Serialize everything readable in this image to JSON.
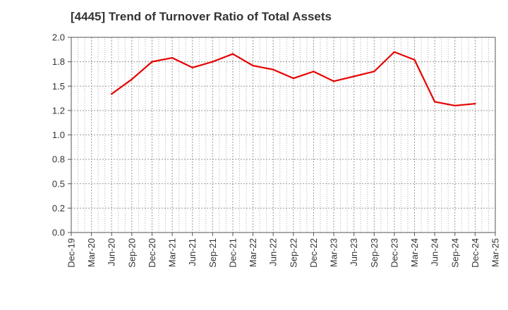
{
  "chart_data": {
    "type": "line",
    "title": "[4445]  Trend of Turnover Ratio of Total Assets",
    "xlabel": "",
    "ylabel": "",
    "x_tick_labels": [
      "Dec-19",
      "Mar-20",
      "Jun-20",
      "Sep-20",
      "Dec-20",
      "Mar-21",
      "Jun-21",
      "Sep-21",
      "Dec-21",
      "Mar-22",
      "Jun-22",
      "Sep-22",
      "Dec-22",
      "Mar-23",
      "Jun-23",
      "Sep-23",
      "Dec-23",
      "Mar-24",
      "Jun-24",
      "Sep-24",
      "Dec-24",
      "Mar-25"
    ],
    "y_tick_labels": [
      "0.0",
      "0.2",
      "0.5",
      "0.8",
      "1.0",
      "1.2",
      "1.5",
      "1.8",
      "2.0"
    ],
    "ylim": [
      0,
      2.0
    ],
    "grid": true,
    "series": [
      {
        "color": "#e60000",
        "points": [
          {
            "x": "Jun-20",
            "y": 1.42
          },
          {
            "x": "Sep-20",
            "y": 1.57
          },
          {
            "x": "Dec-20",
            "y": 1.75
          },
          {
            "x": "Mar-21",
            "y": 1.79
          },
          {
            "x": "Jun-21",
            "y": 1.69
          },
          {
            "x": "Sep-21",
            "y": 1.75
          },
          {
            "x": "Dec-21",
            "y": 1.83
          },
          {
            "x": "Mar-22",
            "y": 1.71
          },
          {
            "x": "Jun-22",
            "y": 1.67
          },
          {
            "x": "Sep-22",
            "y": 1.58
          },
          {
            "x": "Dec-22",
            "y": 1.65
          },
          {
            "x": "Mar-23",
            "y": 1.55
          },
          {
            "x": "Jun-23",
            "y": 1.6
          },
          {
            "x": "Sep-23",
            "y": 1.65
          },
          {
            "x": "Dec-23",
            "y": 1.85
          },
          {
            "x": "Mar-24",
            "y": 1.77
          },
          {
            "x": "Jun-24",
            "y": 1.34
          },
          {
            "x": "Sep-24",
            "y": 1.3
          },
          {
            "x": "Dec-24",
            "y": 1.32
          }
        ]
      }
    ]
  }
}
